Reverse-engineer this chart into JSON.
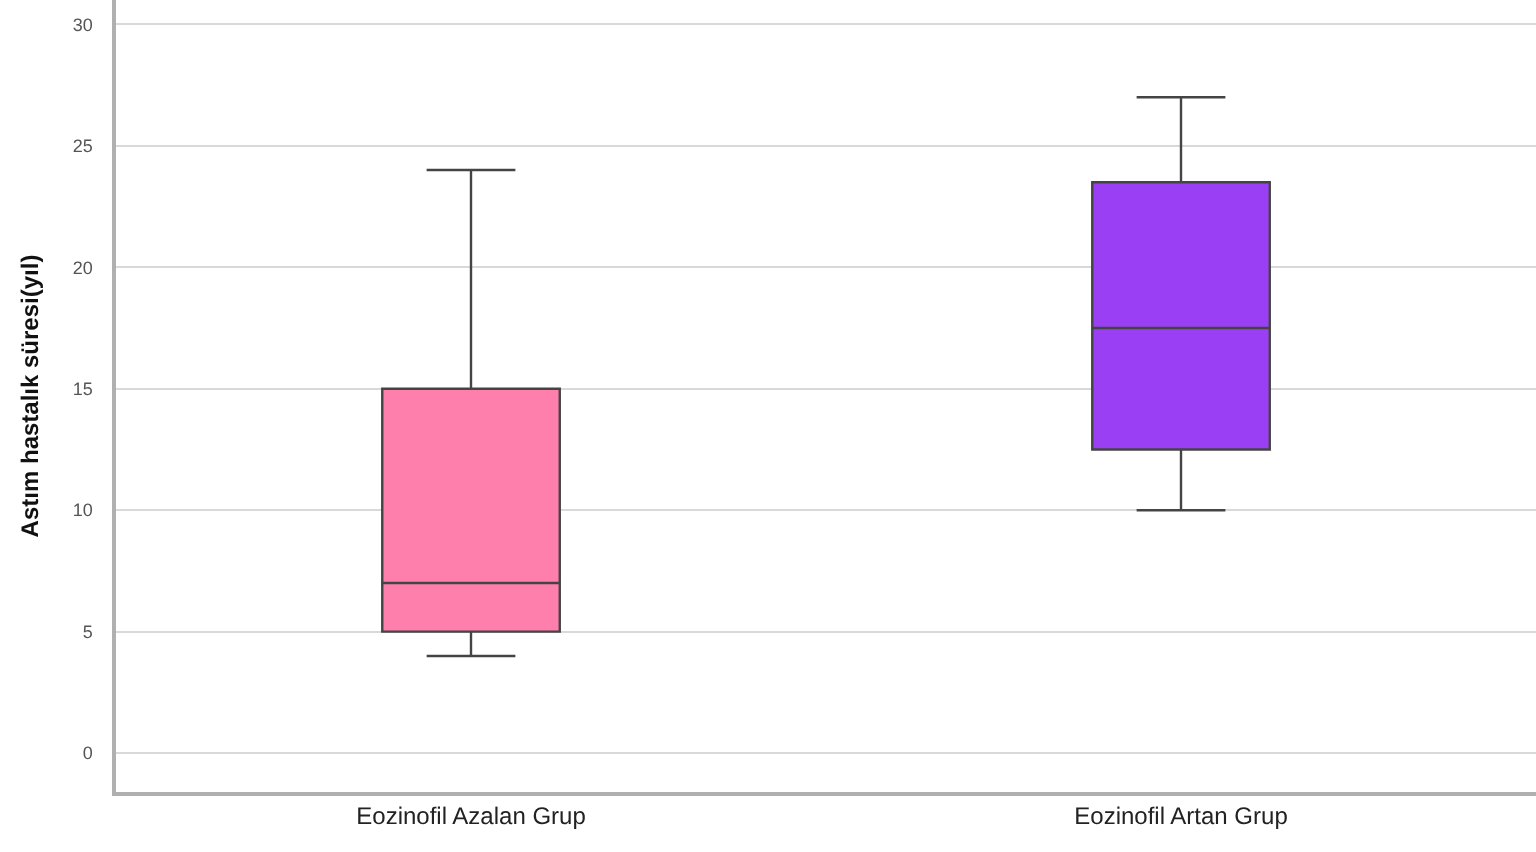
{
  "chart_data": {
    "type": "box",
    "ylabel": "Astım hastalık süresi(yıl)",
    "categories": [
      "Eozinofil Azalan Grup",
      "Eozinofil Artan Grup"
    ],
    "boxes": [
      {
        "low": 4,
        "q1": 5,
        "median": 7,
        "q3": 15,
        "high": 24
      },
      {
        "low": 10,
        "q1": 12.5,
        "median": 17.5,
        "q3": 23.5,
        "high": 27
      }
    ],
    "colors": [
      "#ff7fac",
      "#9b3ff5"
    ],
    "ylim": [
      -1.6,
      31
    ],
    "yticks": [
      0,
      5,
      10,
      15,
      20,
      25,
      30
    ],
    "grid": "y",
    "legend": false
  }
}
